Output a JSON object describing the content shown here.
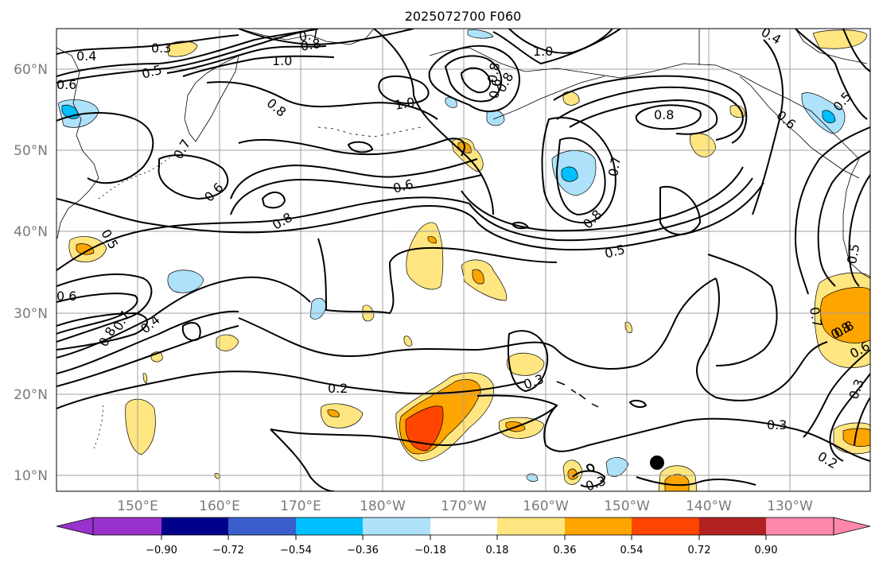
{
  "title": "2025072700 F060",
  "map": {
    "lat_labels": [
      "60°N",
      "50°N",
      "40°N",
      "30°N",
      "20°N",
      "10°N"
    ],
    "lon_labels": [
      "150°E",
      "160°E",
      "170°E",
      "180°W",
      "170°W",
      "160°W",
      "150°W",
      "140°W",
      "130°W"
    ],
    "contour_labels": [
      "0.4",
      "0.3",
      "0.5",
      "0.7",
      "0.8",
      "1.0",
      "0.8",
      "1.0",
      "0.6",
      "0.8",
      "1.0",
      "0.4",
      "0.5",
      "0.8",
      "0.7",
      "0.8",
      "0.6",
      "0.6",
      "0.8",
      "0.7",
      "0.8",
      "0.5",
      "0.5",
      "0.6",
      "0.6",
      "0.4",
      "0.8",
      "0.7",
      "0.8",
      "0.2",
      "0.3",
      "0.3",
      "0.3",
      "0.2",
      "0.3",
      "0.7",
      "0.8",
      "0.6",
      "0.5",
      "0.6"
    ]
  },
  "colorbar": {
    "ticks": [
      "−0.90",
      "−0.72",
      "−0.54",
      "−0.36",
      "−0.18",
      "0.18",
      "0.36",
      "0.54",
      "0.72",
      "0.90"
    ],
    "colors": [
      "#9932cc",
      "#00008b",
      "#3a5fcd",
      "#00bfff",
      "#aee2fa",
      "#ffffff",
      "#ffe680",
      "#ffa500",
      "#ff4500",
      "#b22222",
      "#ff88aa",
      "#ff88aa"
    ]
  }
}
